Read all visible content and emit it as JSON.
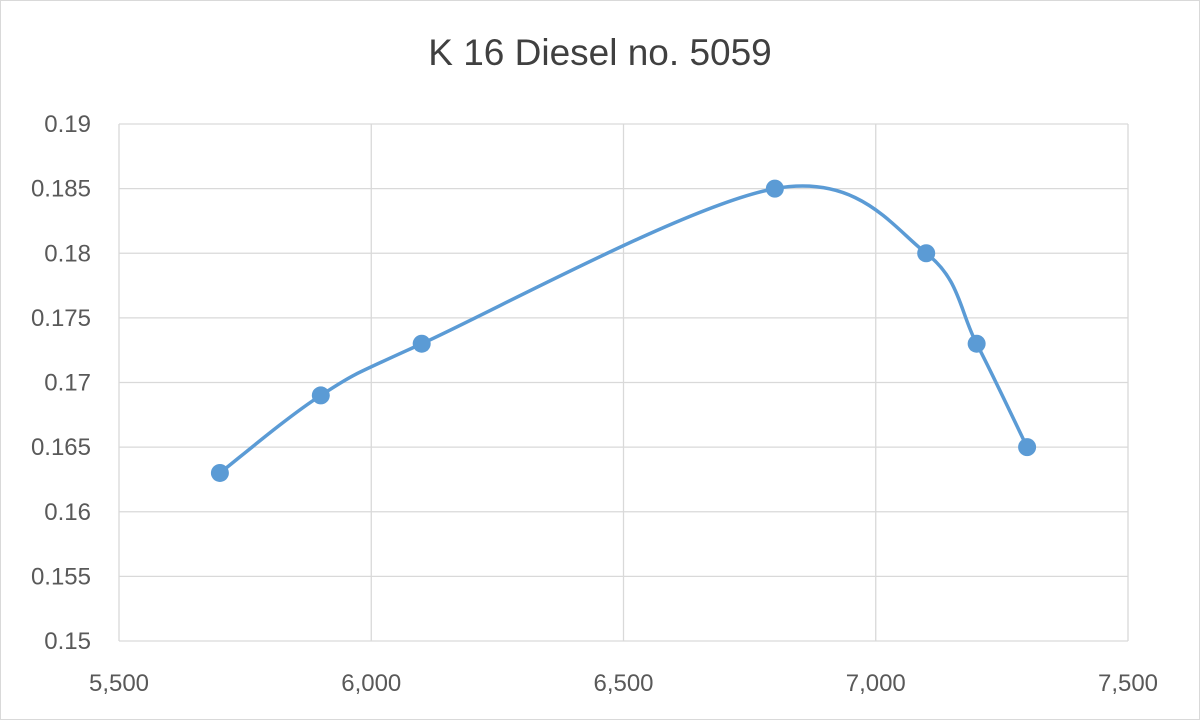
{
  "chart_data": {
    "type": "line",
    "title": "K 16 Diesel no. 5059",
    "xlabel": "",
    "ylabel": "",
    "xlim": [
      5500,
      7500
    ],
    "ylim": [
      0.15,
      0.19
    ],
    "x_ticks": [
      "5,500",
      "6,000",
      "6,500",
      "7,000",
      "7,500"
    ],
    "x_tick_values": [
      5500,
      6000,
      6500,
      7000,
      7500
    ],
    "y_ticks": [
      "0.15",
      "0.155",
      "0.16",
      "0.165",
      "0.17",
      "0.175",
      "0.18",
      "0.185",
      "0.19"
    ],
    "y_tick_values": [
      0.15,
      0.155,
      0.16,
      0.165,
      0.17,
      0.175,
      0.18,
      0.185,
      0.19
    ],
    "grid": true,
    "smooth": true,
    "series": [
      {
        "x": [
          5700,
          5900,
          6100,
          6800,
          7100,
          7200,
          7300
        ],
        "y": [
          0.163,
          0.169,
          0.173,
          0.185,
          0.18,
          0.173,
          0.165
        ],
        "color": "#5b9bd5",
        "marker": "circle"
      }
    ]
  }
}
